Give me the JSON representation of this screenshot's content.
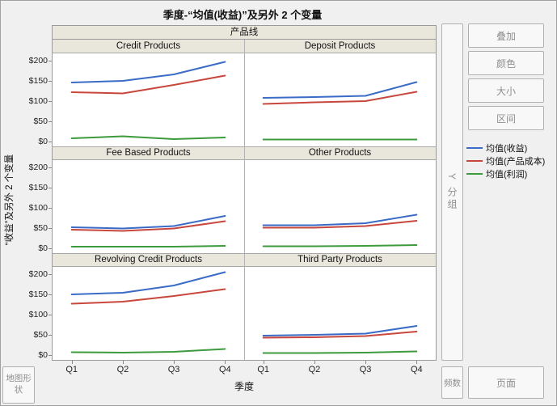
{
  "title": "季度-“均值(收益)”及另外 2 个变量",
  "panel": {
    "column_header": "产品线",
    "xlabel": "季度",
    "ylabel": "“收益”及另外 2 个变量"
  },
  "right_panel": {
    "buttons": [
      {
        "label": "叠加"
      },
      {
        "label": "颜色"
      },
      {
        "label": "大小"
      },
      {
        "label": "区间"
      }
    ],
    "group_y_label": "Y 分组",
    "freq_label": "频数",
    "page_label": "页面"
  },
  "bottom_left": {
    "map_shape_label": "地图形状"
  },
  "legend": [
    {
      "label": "均值(收益)",
      "color": "#3a6bc6"
    },
    {
      "label": "均值(产品成本)",
      "color": "#c8473d"
    },
    {
      "label": "均值(利润)",
      "color": "#3c9b3c"
    }
  ],
  "chart_data": {
    "type": "line",
    "title": "季度-“均值(收益)”及另外 2 个变量",
    "facet_column": "产品线",
    "x": [
      "Q1",
      "Q2",
      "Q3",
      "Q4"
    ],
    "xlabel": "季度",
    "ylabel": "“收益”及另外 2 个变量",
    "ylim": [
      -12,
      218
    ],
    "yticks": [
      0,
      50,
      100,
      150,
      200
    ],
    "ytick_labels": [
      "$0",
      "$50",
      "$100",
      "$150",
      "$200"
    ],
    "grid": false,
    "legend_position": "right",
    "series_colors": {
      "均值(收益)": "#3a6bc6",
      "均值(产品成本)": "#c8473d",
      "均值(利润)": "#3c9b3c"
    },
    "facets": [
      {
        "name": "Credit Products",
        "series": [
          {
            "name": "均值(收益)",
            "values": [
              146,
              150,
              166,
              197
            ]
          },
          {
            "name": "均值(产品成本)",
            "values": [
              122,
              119,
              140,
              163
            ]
          },
          {
            "name": "均值(利润)",
            "values": [
              8,
              13,
              6,
              10
            ]
          }
        ]
      },
      {
        "name": "Deposit Products",
        "series": [
          {
            "name": "均值(收益)",
            "values": [
              108,
              110,
              113,
              147
            ]
          },
          {
            "name": "均值(产品成本)",
            "values": [
              93,
              97,
              100,
              123
            ]
          },
          {
            "name": "均值(利润)",
            "values": [
              5,
              5,
              5,
              5
            ]
          }
        ]
      },
      {
        "name": "Fee Based Products",
        "series": [
          {
            "name": "均值(收益)",
            "values": [
              52,
              49,
              55,
              80
            ]
          },
          {
            "name": "均值(产品成本)",
            "values": [
              46,
              43,
              49,
              67
            ]
          },
          {
            "name": "均值(利润)",
            "values": [
              4,
              4,
              4,
              6
            ]
          }
        ]
      },
      {
        "name": "Other Products",
        "series": [
          {
            "name": "均值(收益)",
            "values": [
              57,
              57,
              62,
              83
            ]
          },
          {
            "name": "均值(产品成本)",
            "values": [
              51,
              51,
              55,
              68
            ]
          },
          {
            "name": "均值(利润)",
            "values": [
              5,
              5,
              6,
              8
            ]
          }
        ]
      },
      {
        "name": "Revolving Credit Products",
        "series": [
          {
            "name": "均值(收益)",
            "values": [
              150,
              154,
              172,
              205
            ]
          },
          {
            "name": "均值(产品成本)",
            "values": [
              127,
              132,
              146,
              163
            ]
          },
          {
            "name": "均值(利润)",
            "values": [
              7,
              6,
              8,
              15
            ]
          }
        ]
      },
      {
        "name": "Third Party Products",
        "series": [
          {
            "name": "均值(收益)",
            "values": [
              48,
              50,
              53,
              72
            ]
          },
          {
            "name": "均值(产品成本)",
            "values": [
              43,
              44,
              47,
              58
            ]
          },
          {
            "name": "均值(利润)",
            "values": [
              5,
              5,
              6,
              9
            ]
          }
        ]
      }
    ]
  }
}
